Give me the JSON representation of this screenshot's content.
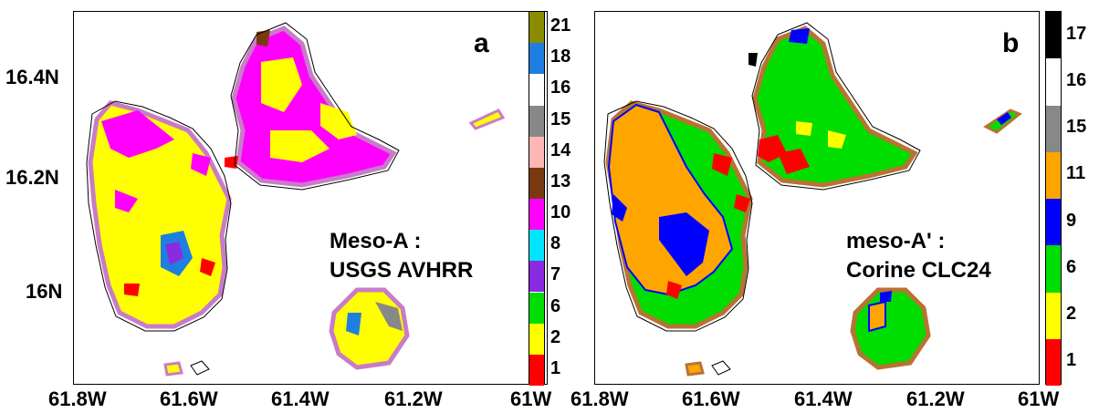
{
  "colors": {
    "c1": "#ff0000",
    "c2": "#ffff00",
    "c6": "#00dd00",
    "c7": "#8a2be2",
    "c8": "#00e5ff",
    "c9": "#0000ff",
    "c10": "#ff00ff",
    "c11": "#ffa500",
    "c13": "#7a3a10",
    "c14": "#ffb6b6",
    "c15": "#888888",
    "c16": "#ffffff",
    "c17": "#000000",
    "c18": "#1e7fe0",
    "c21": "#8b8b00"
  },
  "panel_a": {
    "letter": "a",
    "caption_line1": "Meso-A :",
    "caption_line2": "USGS AVHRR",
    "colorbar": [
      {
        "label": "1",
        "color": "#ff0000"
      },
      {
        "label": "2",
        "color": "#ffff00"
      },
      {
        "label": "6",
        "color": "#00dd00"
      },
      {
        "label": "7",
        "color": "#8a2be2"
      },
      {
        "label": "8",
        "color": "#00e5ff"
      },
      {
        "label": "10",
        "color": "#ff00ff"
      },
      {
        "label": "13",
        "color": "#7a3a10"
      },
      {
        "label": "14",
        "color": "#ffb6b6"
      },
      {
        "label": "15",
        "color": "#888888"
      },
      {
        "label": "16",
        "color": "#ffffff"
      },
      {
        "label": "18",
        "color": "#1e7fe0"
      },
      {
        "label": "21",
        "color": "#8b8b00"
      }
    ],
    "colorbar_labels": [
      "1",
      "2",
      "6",
      "7",
      "8",
      "10",
      "13",
      "14",
      "15",
      "16",
      "18",
      "21"
    ]
  },
  "panel_b": {
    "letter": "b",
    "caption_line1": "meso-A' :",
    "caption_line2": "Corine CLC24",
    "colorbar": [
      {
        "label": "1",
        "color": "#ff0000"
      },
      {
        "label": "2",
        "color": "#ffff00"
      },
      {
        "label": "6",
        "color": "#00dd00"
      },
      {
        "label": "9",
        "color": "#0000ff"
      },
      {
        "label": "11",
        "color": "#ffa500"
      },
      {
        "label": "15",
        "color": "#888888"
      },
      {
        "label": "16",
        "color": "#ffffff"
      },
      {
        "label": "17",
        "color": "#000000"
      }
    ],
    "colorbar_labels": [
      "1",
      "2",
      "6",
      "9",
      "11",
      "15",
      "16",
      "17"
    ]
  },
  "axes": {
    "x_ticks": [
      "61.8W",
      "61.6W",
      "61.4W",
      "61.2W",
      "61W"
    ],
    "y_ticks": [
      "16.4N",
      "16.2N",
      "16N"
    ]
  }
}
